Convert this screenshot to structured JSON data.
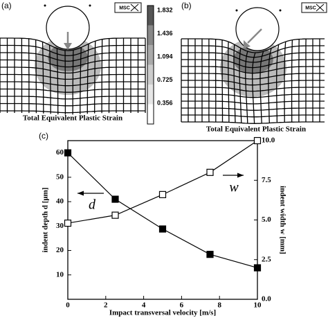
{
  "panels": {
    "a": {
      "label": "(a)",
      "logo": "MSC",
      "caption": "Total Equivalent Plastic Strain",
      "colorbar_ticks": [
        1.832,
        1.436,
        1.094,
        0.725,
        0.356
      ]
    },
    "b": {
      "label": "(b)",
      "logo": "MSC",
      "caption": "Total Equivalent Plastic Strain"
    }
  },
  "chart_data": {
    "type": "line",
    "label": "(c)",
    "x": [
      0,
      2.5,
      5,
      7.5,
      10
    ],
    "series": [
      {
        "name": "d",
        "color": "#000000",
        "marker": "filled-square",
        "values": [
          60,
          41,
          28.8,
          18.4,
          12.9
        ]
      },
      {
        "name": "w",
        "color": "#000000",
        "marker": "open-square",
        "axis": "y2",
        "values": [
          4.8,
          5.3,
          6.6,
          8.0,
          10.0
        ]
      }
    ],
    "xlabel": "Impact transversal velocity [m/s]",
    "ylabel": "indent depth d [μm]",
    "y2label": "indent width w [mm]",
    "xlim": [
      0,
      10
    ],
    "xticks": [
      0,
      2,
      4,
      6,
      8,
      10
    ],
    "ylim": [
      0,
      65
    ],
    "yticks": [
      10,
      20,
      30,
      40,
      50,
      60
    ],
    "y2lim": [
      0,
      10
    ],
    "y2ticks": [
      {
        "value": 0,
        "label": "0.0"
      },
      {
        "value": 2.5,
        "label": "2.5"
      },
      {
        "value": 5,
        "label": "5.0"
      },
      {
        "value": 7.5,
        "label": "7.5"
      },
      {
        "value": 10,
        "label": "10.0"
      }
    ]
  }
}
